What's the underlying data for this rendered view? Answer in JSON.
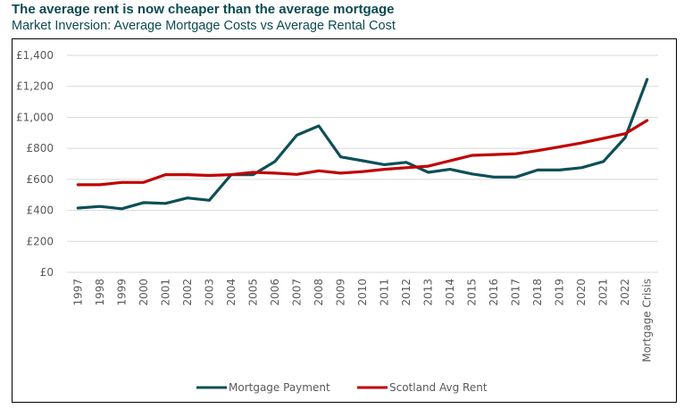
{
  "header": {
    "title": "The average rent is now cheaper than the average mortgage",
    "subtitle": "Market Inversion: Average Mortgage Costs vs Average Rental Cost"
  },
  "chart_data": {
    "type": "line",
    "title": "The average rent is now cheaper than the average mortgage",
    "subtitle": "Market Inversion: Average Mortgage Costs vs Average Rental Cost",
    "xlabel": "",
    "ylabel": "",
    "ylim": [
      0,
      1400
    ],
    "ytick_step": 200,
    "ytick_labels": [
      "£0",
      "£200",
      "£400",
      "£600",
      "£800",
      "£1,000",
      "£1,200",
      "£1,400"
    ],
    "grid": true,
    "legend_position": "bottom",
    "categories": [
      "1997",
      "1998",
      "1999",
      "2000",
      "2001",
      "2002",
      "2003",
      "2004",
      "2005",
      "2006",
      "2007",
      "2008",
      "2009",
      "2010",
      "2011",
      "2012",
      "2013",
      "2014",
      "2015",
      "2016",
      "2017",
      "2018",
      "2019",
      "2020",
      "2021",
      "2022",
      "Mortgage Crisis"
    ],
    "series": [
      {
        "name": "Mortgage Payment",
        "color": "#0d4f57",
        "values": [
          415,
          425,
          410,
          450,
          445,
          480,
          465,
          630,
          630,
          715,
          885,
          945,
          745,
          720,
          695,
          710,
          645,
          665,
          635,
          615,
          615,
          660,
          660,
          675,
          715,
          870,
          1245
        ]
      },
      {
        "name": "Scotland Avg Rent",
        "color": "#c00000",
        "values": [
          565,
          565,
          580,
          580,
          630,
          630,
          625,
          630,
          645,
          640,
          632,
          655,
          640,
          650,
          665,
          675,
          685,
          720,
          755,
          760,
          765,
          785,
          810,
          835,
          865,
          895,
          980
        ]
      }
    ]
  }
}
